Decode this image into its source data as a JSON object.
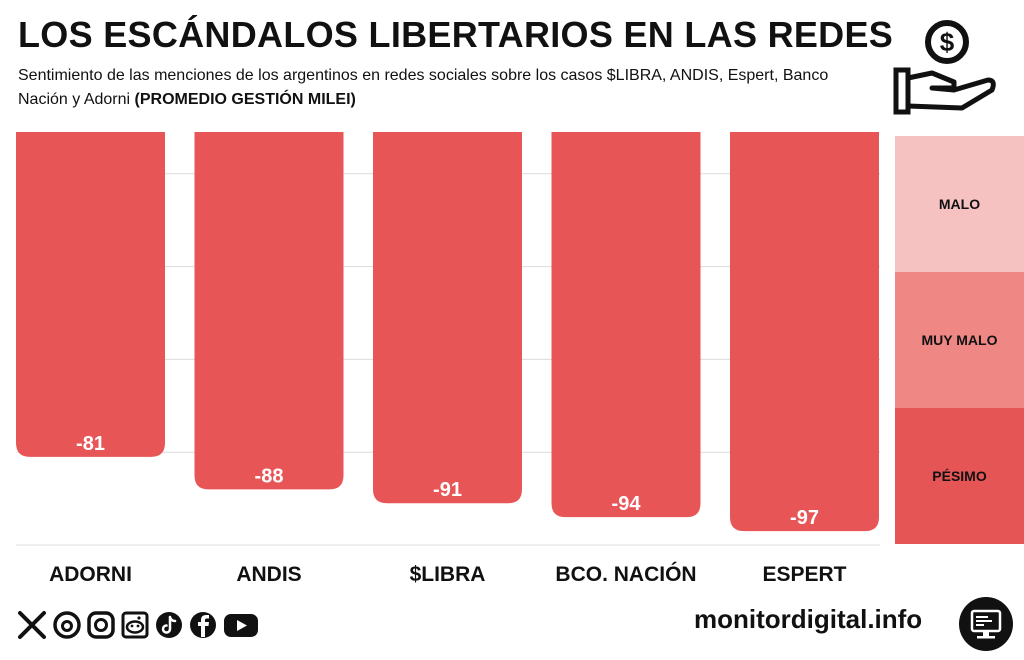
{
  "header": {
    "title": "LOS ESCÁNDALOS LIBERTARIOS EN LAS REDES",
    "subtitle_prefix": "Sentimiento de las menciones de los argentinos en redes sociales sobre los casos $LIBRA, ANDIS, Espert, Banco Nación y Adorni ",
    "subtitle_bold": "(PROMEDIO GESTIÓN MILEI)"
  },
  "chart_data": {
    "type": "bar",
    "categories": [
      "ADORNI",
      "ANDIS",
      "$LIBRA",
      "BCO. NACIÓN",
      "ESPERT"
    ],
    "values": [
      -81,
      -88,
      -91,
      -94,
      -97
    ],
    "value_labels": [
      "-81",
      "-88",
      "-91",
      "-94",
      "-97"
    ],
    "ylim": [
      -100,
      -11
    ],
    "bands": [
      {
        "label": "MALO",
        "from": -11,
        "to": -40,
        "color": "#f5c2c1"
      },
      {
        "label": "MUY MALO",
        "from": -40,
        "to": -70,
        "color": "#ef8884"
      },
      {
        "label": "PÉSIMO",
        "from": -70,
        "to": -100,
        "color": "#e55556"
      }
    ],
    "bar_color": "#e85556",
    "grid": true
  },
  "footer": {
    "site": "monitordigital.info",
    "social_icons": [
      "x-icon",
      "threads-icon",
      "instagram-icon",
      "reddit-icon",
      "tiktok-icon",
      "facebook-icon",
      "youtube-icon"
    ]
  },
  "icons": {
    "header_logo": "hand-dollar-coin-icon",
    "footer_logo": "monitor-icon"
  }
}
